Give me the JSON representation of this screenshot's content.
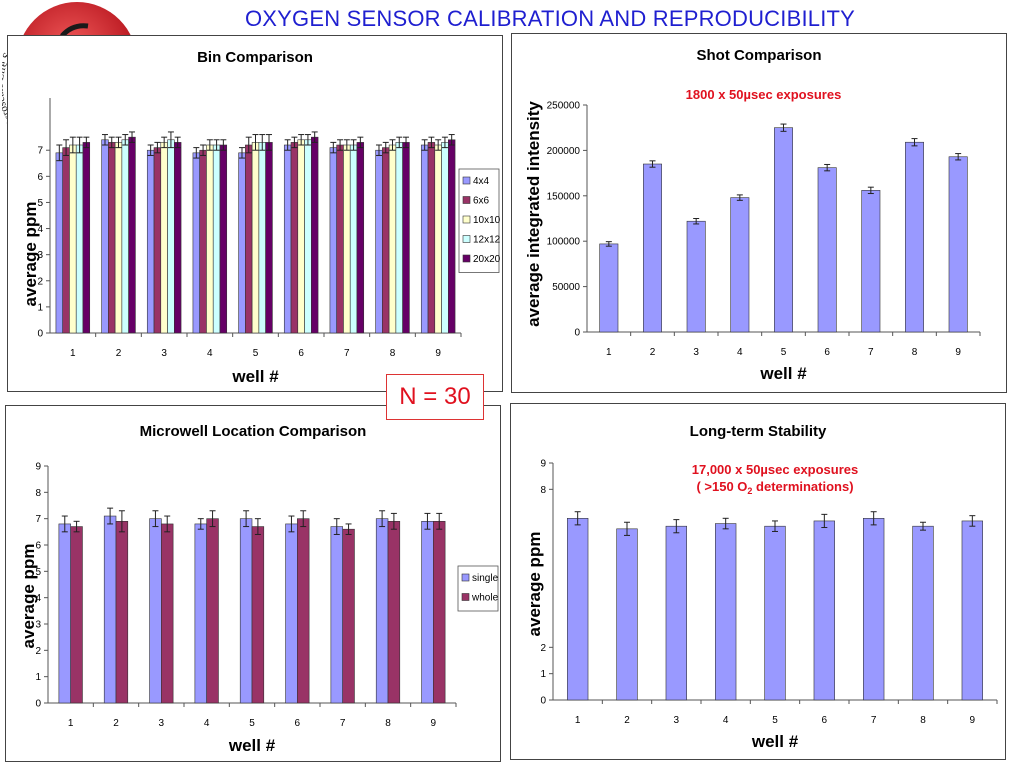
{
  "page": {
    "title": "OXYGEN SENSOR CALIBRATION AND REPRODUCIBILITY",
    "n_label": "N = 30",
    "logo_text": "Microscale Life Sciences Center"
  },
  "colors": {
    "title": "#1f1fd0",
    "annotation": "#e0111f",
    "periwinkle": "#9999ff",
    "plum": "#993366",
    "ivory": "#ffffcc",
    "light_cyan": "#ccffff",
    "purple": "#660066"
  },
  "chart_data": [
    {
      "id": "bin",
      "type": "bar",
      "title": "Bin Comparison",
      "xlabel": "well #",
      "ylabel": "average ppm",
      "ylim": [
        0,
        9
      ],
      "yticks": [
        0,
        1,
        2,
        3,
        4,
        5,
        6,
        7
      ],
      "categories": [
        "1",
        "2",
        "3",
        "4",
        "5",
        "6",
        "7",
        "8",
        "9"
      ],
      "legend": "right",
      "series": [
        {
          "name": "4x4",
          "color": "#9999ff",
          "values": [
            6.9,
            7.4,
            7.0,
            6.9,
            6.9,
            7.2,
            7.1,
            7.0,
            7.2
          ],
          "err": [
            0.3,
            0.2,
            0.2,
            0.2,
            0.2,
            0.2,
            0.2,
            0.2,
            0.2
          ]
        },
        {
          "name": "6x6",
          "color": "#993366",
          "values": [
            7.1,
            7.3,
            7.1,
            7.0,
            7.2,
            7.3,
            7.2,
            7.1,
            7.3
          ],
          "err": [
            0.3,
            0.2,
            0.2,
            0.2,
            0.3,
            0.2,
            0.2,
            0.2,
            0.2
          ]
        },
        {
          "name": "10x10",
          "color": "#ffffcc",
          "values": [
            7.2,
            7.3,
            7.3,
            7.2,
            7.3,
            7.4,
            7.2,
            7.2,
            7.2
          ],
          "err": [
            0.3,
            0.2,
            0.2,
            0.2,
            0.3,
            0.2,
            0.2,
            0.2,
            0.2
          ]
        },
        {
          "name": "12x12",
          "color": "#ccffff",
          "values": [
            7.2,
            7.4,
            7.4,
            7.2,
            7.3,
            7.4,
            7.2,
            7.3,
            7.3
          ],
          "err": [
            0.3,
            0.2,
            0.3,
            0.2,
            0.3,
            0.2,
            0.2,
            0.2,
            0.2
          ]
        },
        {
          "name": "20x20",
          "color": "#660066",
          "values": [
            7.3,
            7.5,
            7.3,
            7.2,
            7.3,
            7.5,
            7.3,
            7.3,
            7.4
          ],
          "err": [
            0.2,
            0.2,
            0.2,
            0.2,
            0.3,
            0.2,
            0.2,
            0.2,
            0.2
          ]
        }
      ]
    },
    {
      "id": "shot",
      "type": "bar",
      "title": "Shot Comparison",
      "annotation": "1800 x 50µsec exposures",
      "xlabel": "well #",
      "ylabel": "average integrated intensity",
      "ylim": [
        0,
        250000
      ],
      "yticks": [
        0,
        50000,
        100000,
        150000,
        200000,
        250000
      ],
      "categories": [
        "1",
        "2",
        "3",
        "4",
        "5",
        "6",
        "7",
        "8",
        "9"
      ],
      "series": [
        {
          "name": "",
          "color": "#9999ff",
          "values": [
            97000,
            185000,
            122000,
            148000,
            225000,
            181000,
            156000,
            209000,
            193000
          ],
          "err": [
            2500,
            3500,
            3000,
            3000,
            4000,
            3500,
            3500,
            4000,
            3500
          ]
        }
      ]
    },
    {
      "id": "microwell",
      "type": "bar",
      "title": "Microwell Location Comparison",
      "xlabel": "well #",
      "ylabel": "average ppm",
      "ylim": [
        0,
        9
      ],
      "yticks": [
        0,
        1,
        2,
        3,
        4,
        5,
        6,
        7,
        8,
        9
      ],
      "categories": [
        "1",
        "2",
        "3",
        "4",
        "5",
        "6",
        "7",
        "8",
        "9"
      ],
      "legend": "right",
      "series": [
        {
          "name": "single",
          "color": "#9999ff",
          "values": [
            6.8,
            7.1,
            7.0,
            6.8,
            7.0,
            6.8,
            6.7,
            7.0,
            6.9
          ],
          "err": [
            0.3,
            0.3,
            0.3,
            0.2,
            0.3,
            0.3,
            0.3,
            0.3,
            0.3
          ]
        },
        {
          "name": "whole",
          "color": "#993366",
          "values": [
            6.7,
            6.9,
            6.8,
            7.0,
            6.7,
            7.0,
            6.6,
            6.9,
            6.9
          ],
          "err": [
            0.2,
            0.4,
            0.3,
            0.3,
            0.3,
            0.3,
            0.2,
            0.3,
            0.3
          ]
        }
      ]
    },
    {
      "id": "longterm",
      "type": "bar",
      "title": "Long-term Stability",
      "annotation": "17,000 x 50µsec exposures",
      "annotation2": "( >150 O",
      "annotation2_sub": "2",
      "annotation2_tail": " determinations)",
      "xlabel": "well #",
      "ylabel": "average ppm",
      "ylim": [
        0,
        9
      ],
      "yticks": [
        0,
        1,
        2,
        8,
        9
      ],
      "categories": [
        "1",
        "2",
        "3",
        "4",
        "5",
        "6",
        "7",
        "8",
        "9"
      ],
      "series": [
        {
          "name": "",
          "color": "#9999ff",
          "values": [
            6.9,
            6.5,
            6.6,
            6.7,
            6.6,
            6.8,
            6.9,
            6.6,
            6.8
          ],
          "err": [
            0.25,
            0.25,
            0.25,
            0.2,
            0.2,
            0.25,
            0.25,
            0.15,
            0.2
          ]
        }
      ]
    }
  ]
}
